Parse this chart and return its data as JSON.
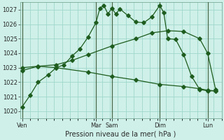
{
  "background_color": "#cef0e8",
  "grid_color": "#a0d8cc",
  "line_color": "#1e5c1e",
  "ylim": [
    1019.5,
    1027.5
  ],
  "ytick_vals": [
    1020,
    1021,
    1022,
    1023,
    1024,
    1025,
    1026,
    1027
  ],
  "xlabel": "Pression niveau de la mer( hPa )",
  "day_labels": [
    "Ven",
    "Mar",
    "Sam",
    "Dim",
    "Lun"
  ],
  "day_x": [
    0,
    37,
    45,
    69,
    93
  ],
  "n_points": 100,
  "series1_x": [
    0,
    4,
    8,
    13,
    17,
    21,
    25,
    29,
    33,
    37,
    39,
    41,
    43,
    45,
    47,
    49,
    53,
    57,
    61,
    65,
    69,
    71,
    73,
    77,
    81,
    85,
    89,
    93,
    97
  ],
  "series1_y": [
    1020.3,
    1021.1,
    1022.0,
    1022.5,
    1023.0,
    1023.2,
    1023.8,
    1024.3,
    1025.1,
    1026.1,
    1027.1,
    1027.3,
    1026.7,
    1027.1,
    1026.7,
    1027.05,
    1026.6,
    1026.15,
    1026.1,
    1026.5,
    1027.3,
    1026.8,
    1025.0,
    1024.95,
    1023.9,
    1022.4,
    1021.5,
    1021.4,
    1021.4
  ],
  "series2_x": [
    0,
    8,
    17,
    25,
    33,
    45,
    57,
    65,
    73,
    81,
    89,
    93,
    97
  ],
  "series2_y": [
    1022.8,
    1023.1,
    1023.2,
    1023.5,
    1023.9,
    1024.5,
    1025.0,
    1025.4,
    1025.55,
    1025.5,
    1025.0,
    1024.0,
    1021.5
  ],
  "series3_x": [
    0,
    8,
    17,
    33,
    45,
    57,
    69,
    81,
    89,
    93,
    97
  ],
  "series3_y": [
    1023.0,
    1023.1,
    1023.0,
    1022.7,
    1022.4,
    1022.15,
    1021.85,
    1021.7,
    1021.55,
    1021.45,
    1021.4
  ],
  "vline_color": "#4a6a4a",
  "vline_positions": [
    0,
    37,
    45,
    69,
    93
  ]
}
